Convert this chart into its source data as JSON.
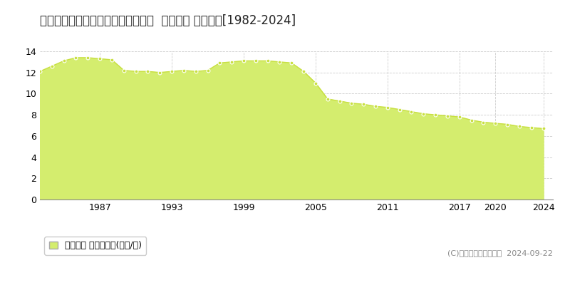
{
  "title": "北海道苫小牧市山手町２丁目６番５  公示地価 地価推移[1982-2024]",
  "years": [
    1982,
    1983,
    1984,
    1985,
    1986,
    1987,
    1988,
    1989,
    1990,
    1991,
    1992,
    1993,
    1994,
    1995,
    1996,
    1997,
    1998,
    1999,
    2000,
    2001,
    2002,
    2003,
    2004,
    2005,
    2006,
    2007,
    2008,
    2009,
    2010,
    2011,
    2012,
    2013,
    2014,
    2015,
    2016,
    2017,
    2018,
    2019,
    2020,
    2021,
    2022,
    2023,
    2024
  ],
  "values": [
    12.1,
    12.6,
    13.1,
    13.4,
    13.4,
    13.3,
    13.2,
    12.2,
    12.1,
    12.1,
    12.0,
    12.1,
    12.2,
    12.1,
    12.2,
    12.9,
    13.0,
    13.1,
    13.1,
    13.1,
    13.0,
    12.9,
    12.1,
    11.0,
    9.5,
    9.3,
    9.1,
    9.0,
    8.8,
    8.7,
    8.5,
    8.3,
    8.1,
    8.0,
    7.9,
    7.8,
    7.5,
    7.3,
    7.2,
    7.1,
    6.9,
    6.8,
    6.7
  ],
  "fill_color": "#d4ed6e",
  "line_color": "#c8e040",
  "marker_color": "#c8e040",
  "marker_edge_color": "#ffffff",
  "bg_color": "#ffffff",
  "plot_bg_color": "#ffffff",
  "grid_color": "#cccccc",
  "ylim": [
    0,
    14
  ],
  "yticks": [
    0,
    2,
    4,
    6,
    8,
    10,
    12,
    14
  ],
  "xtick_years": [
    1987,
    1993,
    1999,
    2005,
    2011,
    2017,
    2020,
    2024
  ],
  "copyright_text": "(C)土地価格ドットコム  2024-09-22",
  "legend_label": "公示地価 平均嵪単価(万円/嵪)",
  "title_fontsize": 12,
  "tick_fontsize": 9,
  "legend_fontsize": 9,
  "copyright_fontsize": 8,
  "xlim_left": 1982,
  "xlim_right": 2024.8
}
